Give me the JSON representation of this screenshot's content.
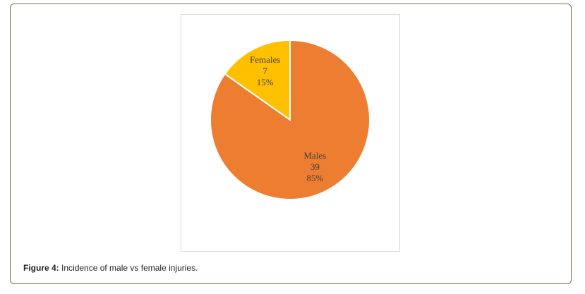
{
  "chart_data": {
    "type": "pie",
    "categories": [
      "Males",
      "Females"
    ],
    "values": [
      39,
      7
    ],
    "percent_labels": [
      "85%",
      "15%"
    ],
    "colors": [
      "#ed7d31",
      "#ffc000"
    ]
  },
  "caption": {
    "label": "Figure 4:",
    "text": "Incidence of male vs female injuries."
  }
}
